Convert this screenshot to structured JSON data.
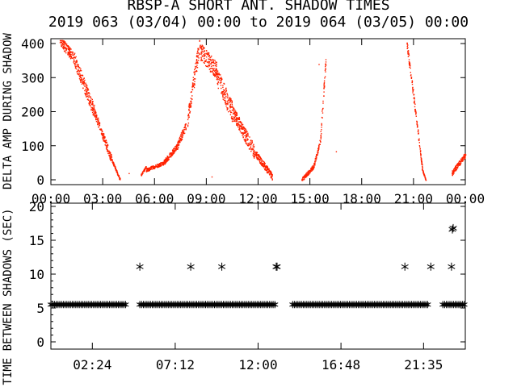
{
  "title": "RBSP-A SHORT ANT. SHADOW TIMES",
  "subtitle": "2019 063 (03/04) 00:00 to 2019 064 (03/05) 00:00",
  "chart_data": [
    {
      "type": "scatter",
      "ylabel": "DELTA AMP DURING SHADOW",
      "ylim": [
        0,
        400
      ],
      "y_ticks": [
        "0",
        "100",
        "200",
        "300",
        "400"
      ],
      "xlim_hours": [
        0,
        24
      ],
      "x_ticks": [
        "00:00",
        "03:00",
        "06:00",
        "09:00",
        "12:00",
        "15:00",
        "18:00",
        "21:00",
        "00:00"
      ],
      "point_color": "#ff2200",
      "segments": [
        {
          "from": [
            0.5,
            410
          ],
          "to": [
            1.3,
            360
          ],
          "spread": 30
        },
        {
          "from": [
            1.3,
            360
          ],
          "to": [
            2.5,
            200
          ],
          "spread": 40
        },
        {
          "from": [
            2.5,
            200
          ],
          "to": [
            3.5,
            60
          ],
          "spread": 25
        },
        {
          "from": [
            3.5,
            60
          ],
          "to": [
            4.0,
            0
          ],
          "spread": 8
        },
        {
          "from": [
            5.2,
            15
          ],
          "to": [
            5.5,
            40
          ],
          "spread": 6
        },
        {
          "from": [
            5.5,
            30
          ],
          "to": [
            6.5,
            50
          ],
          "spread": 10
        },
        {
          "from": [
            6.5,
            50
          ],
          "to": [
            7.3,
            100
          ],
          "spread": 15
        },
        {
          "from": [
            7.3,
            100
          ],
          "to": [
            7.8,
            160
          ],
          "spread": 25
        },
        {
          "from": [
            7.9,
            180
          ],
          "to": [
            8.6,
            400
          ],
          "spread": 50
        },
        {
          "from": [
            8.6,
            380
          ],
          "to": [
            9.6,
            320
          ],
          "spread": 50
        },
        {
          "from": [
            9.6,
            300
          ],
          "to": [
            10.5,
            200
          ],
          "spread": 60
        },
        {
          "from": [
            10.5,
            200
          ],
          "to": [
            11.8,
            80
          ],
          "spread": 40
        },
        {
          "from": [
            11.8,
            80
          ],
          "to": [
            12.8,
            10
          ],
          "spread": 20
        },
        {
          "from": [
            14.5,
            0
          ],
          "to": [
            15.2,
            40
          ],
          "spread": 12
        },
        {
          "from": [
            15.2,
            40
          ],
          "to": [
            15.6,
            120
          ],
          "spread": 15
        },
        {
          "from": [
            15.6,
            130
          ],
          "to": [
            15.9,
            350
          ],
          "spread": 30
        },
        {
          "from": [
            20.6,
            400
          ],
          "to": [
            21.1,
            200
          ],
          "spread": 25
        },
        {
          "from": [
            21.1,
            200
          ],
          "to": [
            21.5,
            30
          ],
          "spread": 15
        },
        {
          "from": [
            21.5,
            30
          ],
          "to": [
            21.7,
            0
          ],
          "spread": 5
        },
        {
          "from": [
            23.2,
            20
          ],
          "to": [
            24.0,
            75
          ],
          "spread": 15
        }
      ]
    },
    {
      "type": "scatter",
      "ylabel": "TIME BETWEEN SHADOWS (SEC)",
      "ylim": [
        0,
        20
      ],
      "y_ticks": [
        "0",
        "5",
        "10",
        "15",
        "20"
      ],
      "x_ticks": [
        "02:24",
        "07:12",
        "12:00",
        "16:48",
        "21:35"
      ],
      "x_tick_hours": [
        2.4,
        7.2,
        12.0,
        16.8,
        21.583
      ],
      "baseline_value": 5.5,
      "baseline_ranges_hours": [
        [
          0,
          4.4
        ],
        [
          5.15,
          13.0
        ],
        [
          14.0,
          21.9
        ],
        [
          22.7,
          24.0
        ]
      ],
      "outliers": [
        {
          "x": 5.15,
          "y": 11.1
        },
        {
          "x": 8.1,
          "y": 11.1
        },
        {
          "x": 9.9,
          "y": 11.1
        },
        {
          "x": 13.05,
          "y": 11.1
        },
        {
          "x": 13.1,
          "y": 11.1
        },
        {
          "x": 20.5,
          "y": 11.1
        },
        {
          "x": 22.0,
          "y": 11.1
        },
        {
          "x": 23.2,
          "y": 11.1
        },
        {
          "x": 23.25,
          "y": 16.6
        },
        {
          "x": 23.3,
          "y": 16.8
        }
      ],
      "marker": "*"
    }
  ]
}
